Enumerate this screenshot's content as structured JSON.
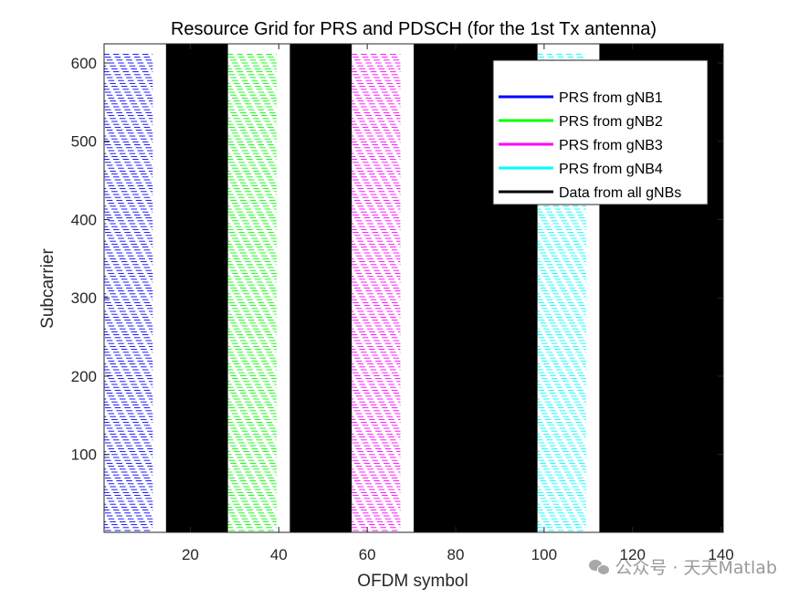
{
  "chart_data": {
    "type": "heatmap",
    "title": "Resource Grid for PRS and PDSCH (for the 1st Tx antenna)",
    "xlabel": "OFDM symbol",
    "ylabel": "Subcarrier",
    "xlim": [
      0.5,
      140.5
    ],
    "ylim": [
      0.5,
      624.5
    ],
    "xticks": [
      20,
      40,
      60,
      80,
      100,
      120,
      140
    ],
    "yticks": [
      100,
      200,
      300,
      400,
      500,
      600
    ],
    "xtick_labels": [
      "20",
      "40",
      "60",
      "80",
      "100",
      "120",
      "140"
    ],
    "ytick_labels": [
      "100",
      "200",
      "300",
      "400",
      "500",
      "600"
    ],
    "grid": false,
    "legend_position": "top-right",
    "background_color": "#ffffff",
    "prs_top_subcarrier": 612,
    "series": [
      {
        "name": "PRS from gNB1",
        "color": "#0000ff",
        "kind": "prs",
        "symbols": [
          1,
          11
        ]
      },
      {
        "name": "PRS from gNB2",
        "color": "#00ff00",
        "kind": "prs",
        "symbols": [
          29,
          39
        ]
      },
      {
        "name": "PRS from gNB3",
        "color": "#ff00ff",
        "kind": "prs",
        "symbols": [
          57,
          67
        ]
      },
      {
        "name": "PRS from gNB4",
        "color": "#00ffff",
        "kind": "prs",
        "symbols": [
          99,
          109
        ]
      },
      {
        "name": "Data from all gNBs",
        "color": "#000000",
        "kind": "data",
        "ranges": [
          [
            15,
            28
          ],
          [
            43,
            56
          ],
          [
            71,
            98
          ],
          [
            113,
            140
          ]
        ]
      }
    ]
  },
  "watermark": {
    "text": "公众号 · 天天Matlab",
    "icon": "wechat-icon",
    "color": "#9a9a9a"
  }
}
